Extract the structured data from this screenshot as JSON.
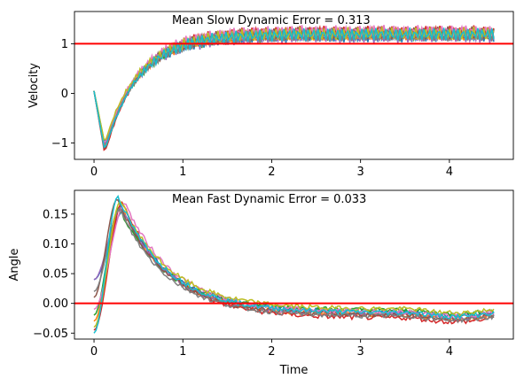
{
  "chart_data": [
    {
      "type": "line",
      "title": "",
      "annotation": "Mean Slow Dynamic Error = 0.313",
      "xlabel": "",
      "ylabel": "Velocity",
      "xlim": [
        -0.22,
        4.72
      ],
      "ylim": [
        -1.33,
        1.65
      ],
      "xticks": [
        0,
        1,
        2,
        3,
        4
      ],
      "xtick_labels": [
        "0",
        "1",
        "2",
        "3",
        "4"
      ],
      "yticks": [
        -1,
        0,
        1
      ],
      "ytick_labels": [
        "−1",
        "0",
        "1"
      ],
      "grid": false,
      "reference_line": {
        "y": 1,
        "color": "#ff0000"
      },
      "series_shape": {
        "start": 0.05,
        "dip_x": 0.12,
        "dip_min": -1.2,
        "plateau": 1.2,
        "oscillation_amplitude": 0.12
      },
      "series": [
        {
          "color": "#1f77b4",
          "dip": -1.02,
          "level": 1.16
        },
        {
          "color": "#ff7f0e",
          "dip": -1.1,
          "level": 1.2
        },
        {
          "color": "#2ca02c",
          "dip": -1.15,
          "level": 1.18
        },
        {
          "color": "#d62728",
          "dip": -1.22,
          "level": 1.24
        },
        {
          "color": "#9467bd",
          "dip": -1.08,
          "level": 1.15
        },
        {
          "color": "#8c564b",
          "dip": -1.18,
          "level": 1.22
        },
        {
          "color": "#e377c2",
          "dip": -1.05,
          "level": 1.25
        },
        {
          "color": "#7f7f7f",
          "dip": -1.12,
          "level": 1.17
        },
        {
          "color": "#bcbd22",
          "dip": -1.0,
          "level": 1.21
        },
        {
          "color": "#17becf",
          "dip": -1.16,
          "level": 1.19
        }
      ]
    },
    {
      "type": "line",
      "title": "",
      "annotation": "Mean Fast Dynamic Error = 0.033",
      "xlabel": "Time",
      "ylabel": "Angle",
      "xlim": [
        -0.22,
        4.72
      ],
      "ylim": [
        -0.06,
        0.19
      ],
      "xticks": [
        0,
        1,
        2,
        3,
        4
      ],
      "xtick_labels": [
        "0",
        "1",
        "2",
        "3",
        "4"
      ],
      "yticks": [
        -0.05,
        0.0,
        0.05,
        0.1,
        0.15
      ],
      "ytick_labels": [
        "−0.05",
        "0.00",
        "0.05",
        "0.10",
        "0.15"
      ],
      "grid": false,
      "reference_line": {
        "y": 0,
        "color": "#ff0000"
      },
      "series": [
        {
          "color": "#1f77b4",
          "start": 0.04,
          "peak": 0.155,
          "peak_x": 0.33,
          "end": -0.015
        },
        {
          "color": "#ff7f0e",
          "start": -0.03,
          "peak": 0.165,
          "peak_x": 0.3,
          "end": -0.02
        },
        {
          "color": "#2ca02c",
          "start": -0.02,
          "peak": 0.16,
          "peak_x": 0.28,
          "end": -0.012
        },
        {
          "color": "#d62728",
          "start": -0.045,
          "peak": 0.17,
          "peak_x": 0.32,
          "end": -0.025
        },
        {
          "color": "#9467bd",
          "start": 0.04,
          "peak": 0.162,
          "peak_x": 0.31,
          "end": -0.018
        },
        {
          "color": "#8c564b",
          "start": 0.01,
          "peak": 0.175,
          "peak_x": 0.26,
          "end": -0.02
        },
        {
          "color": "#e377c2",
          "start": -0.01,
          "peak": 0.168,
          "peak_x": 0.35,
          "end": -0.015
        },
        {
          "color": "#7f7f7f",
          "start": 0.02,
          "peak": 0.158,
          "peak_x": 0.29,
          "end": -0.022
        },
        {
          "color": "#bcbd22",
          "start": -0.04,
          "peak": 0.172,
          "peak_x": 0.3,
          "end": -0.01
        },
        {
          "color": "#17becf",
          "start": -0.05,
          "peak": 0.18,
          "peak_x": 0.27,
          "end": -0.016
        }
      ]
    }
  ]
}
